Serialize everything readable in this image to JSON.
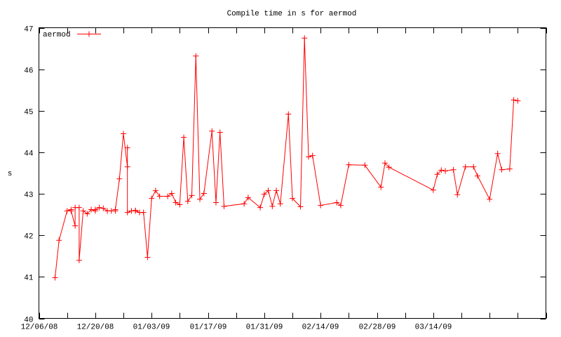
{
  "chart_data": {
    "type": "line",
    "title": "Compile time in s for aermod",
    "xlabel": "",
    "ylabel": "s",
    "xlim": [
      "2008-12-06",
      "2009-04-11"
    ],
    "ylim": [
      40,
      47
    ],
    "x_tick_labels": [
      "12/06/08",
      "12/20/08",
      "01/03/09",
      "01/17/09",
      "01/31/09",
      "02/14/09",
      "02/28/09",
      "03/14/09"
    ],
    "y_tick_labels": [
      "40",
      "41",
      "42",
      "43",
      "44",
      "45",
      "46",
      "47"
    ],
    "grid": false,
    "legend_placement": "top-left",
    "series": [
      {
        "name": "aermod",
        "color": "#ff0000",
        "marker": "plus",
        "points": [
          [
            "2008-12-10",
            40.98
          ],
          [
            "2008-12-11",
            41.88
          ],
          [
            "2008-12-13",
            42.59
          ],
          [
            "2008-12-14",
            42.62
          ],
          [
            "2008-12-14",
            42.59
          ],
          [
            "2008-12-15",
            42.23
          ],
          [
            "2008-12-15",
            42.67
          ],
          [
            "2008-12-16",
            42.67
          ],
          [
            "2008-12-16",
            41.4
          ],
          [
            "2008-12-17",
            42.59
          ],
          [
            "2008-12-18",
            42.52
          ],
          [
            "2008-12-19",
            42.62
          ],
          [
            "2008-12-20",
            42.59
          ],
          [
            "2008-12-20",
            42.62
          ],
          [
            "2008-12-21",
            42.67
          ],
          [
            "2008-12-22",
            42.65
          ],
          [
            "2008-12-23",
            42.59
          ],
          [
            "2008-12-24",
            42.59
          ],
          [
            "2008-12-25",
            42.59
          ],
          [
            "2008-12-25",
            42.62
          ],
          [
            "2008-12-26",
            43.36
          ],
          [
            "2008-12-27",
            44.45
          ],
          [
            "2008-12-28",
            43.65
          ],
          [
            "2008-12-28",
            44.11
          ],
          [
            "2008-12-28",
            42.55
          ],
          [
            "2008-12-29",
            42.59
          ],
          [
            "2008-12-30",
            42.6
          ],
          [
            "2008-12-30",
            42.59
          ],
          [
            "2008-12-31",
            42.55
          ],
          [
            "2009-01-01",
            42.55
          ],
          [
            "2009-01-02",
            41.47
          ],
          [
            "2009-01-03",
            42.89
          ],
          [
            "2009-01-04",
            43.08
          ],
          [
            "2009-01-05",
            42.94
          ],
          [
            "2009-01-07",
            42.94
          ],
          [
            "2009-01-08",
            43.01
          ],
          [
            "2009-01-09",
            42.79
          ],
          [
            "2009-01-10",
            42.74
          ],
          [
            "2009-01-11",
            44.36
          ],
          [
            "2009-01-12",
            42.82
          ],
          [
            "2009-01-13",
            42.96
          ],
          [
            "2009-01-14",
            46.32
          ],
          [
            "2009-01-15",
            42.87
          ],
          [
            "2009-01-16",
            43.01
          ],
          [
            "2009-01-18",
            44.51
          ],
          [
            "2009-01-19",
            42.79
          ],
          [
            "2009-01-20",
            44.48
          ],
          [
            "2009-01-21",
            42.7
          ],
          [
            "2009-01-26",
            42.76
          ],
          [
            "2009-01-27",
            42.91
          ],
          [
            "2009-01-30",
            42.67
          ],
          [
            "2009-01-31",
            42.99
          ],
          [
            "2009-02-01",
            43.08
          ],
          [
            "2009-02-02",
            42.7
          ],
          [
            "2009-02-03",
            43.08
          ],
          [
            "2009-02-04",
            42.76
          ],
          [
            "2009-02-06",
            44.92
          ],
          [
            "2009-02-07",
            42.89
          ],
          [
            "2009-02-09",
            42.69
          ],
          [
            "2009-02-10",
            46.75
          ],
          [
            "2009-02-11",
            43.89
          ],
          [
            "2009-02-12",
            43.92
          ],
          [
            "2009-02-14",
            42.72
          ],
          [
            "2009-02-18",
            42.79
          ],
          [
            "2009-02-19",
            42.72
          ],
          [
            "2009-02-21",
            43.7
          ],
          [
            "2009-02-25",
            43.69
          ],
          [
            "2009-03-01",
            43.16
          ],
          [
            "2009-03-02",
            43.74
          ],
          [
            "2009-03-03",
            43.64
          ],
          [
            "2009-03-14",
            43.09
          ],
          [
            "2009-03-15",
            43.47
          ],
          [
            "2009-03-16",
            43.57
          ],
          [
            "2009-03-17",
            43.55
          ],
          [
            "2009-03-19",
            43.58
          ],
          [
            "2009-03-20",
            42.98
          ],
          [
            "2009-03-22",
            43.65
          ],
          [
            "2009-03-24",
            43.65
          ],
          [
            "2009-03-25",
            43.43
          ],
          [
            "2009-03-28",
            42.87
          ],
          [
            "2009-03-30",
            43.97
          ],
          [
            "2009-03-31",
            43.58
          ],
          [
            "2009-04-02",
            43.6
          ],
          [
            "2009-04-03",
            45.26
          ],
          [
            "2009-04-04",
            45.24
          ]
        ]
      }
    ]
  }
}
